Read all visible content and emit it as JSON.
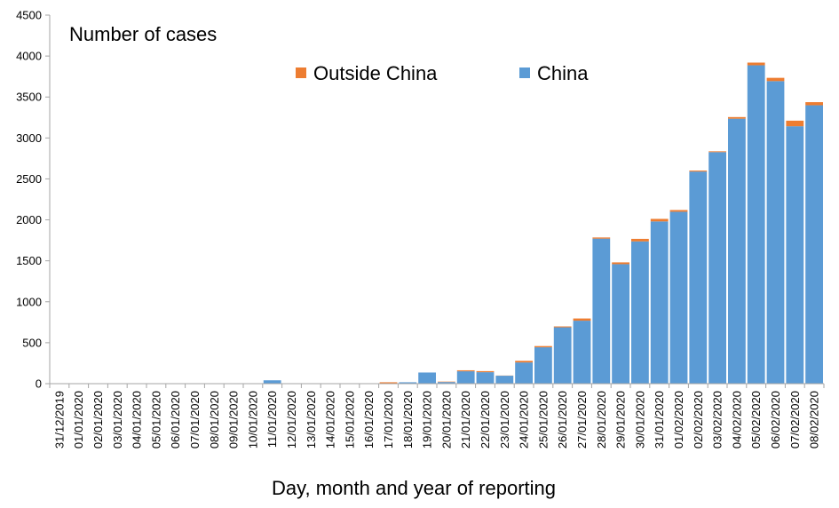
{
  "chart_data": {
    "type": "bar",
    "stacked": true,
    "title": "Number of cases",
    "xlabel": "Day, month and year of reporting",
    "ylabel": "",
    "ylim": [
      0,
      4500
    ],
    "yticks": [
      0,
      500,
      1000,
      1500,
      2000,
      2500,
      3000,
      3500,
      4000,
      4500
    ],
    "grid": false,
    "legend_position": "top-center",
    "categories": [
      "31/12/2019",
      "01/01/2020",
      "02/01/2020",
      "03/01/2020",
      "04/01/2020",
      "05/01/2020",
      "06/01/2020",
      "07/01/2020",
      "08/01/2020",
      "09/01/2020",
      "10/01/2020",
      "11/01/2020",
      "12/01/2020",
      "13/01/2020",
      "14/01/2020",
      "15/01/2020",
      "16/01/2020",
      "17/01/2020",
      "18/01/2020",
      "19/01/2020",
      "20/01/2020",
      "21/01/2020",
      "22/01/2020",
      "23/01/2020",
      "24/01/2020",
      "25/01/2020",
      "26/01/2020",
      "27/01/2020",
      "28/01/2020",
      "29/01/2020",
      "30/01/2020",
      "31/01/2020",
      "01/02/2020",
      "02/02/2020",
      "03/02/2020",
      "04/02/2020",
      "05/02/2020",
      "06/02/2020",
      "07/02/2020",
      "08/02/2020"
    ],
    "series": [
      {
        "name": "China",
        "color": "#5b9bd5",
        "values": [
          0,
          0,
          0,
          0,
          0,
          0,
          0,
          0,
          0,
          0,
          0,
          41,
          0,
          0,
          0,
          0,
          0,
          4,
          17,
          136,
          20,
          151,
          140,
          97,
          259,
          444,
          688,
          769,
          1771,
          1459,
          1737,
          1981,
          2099,
          2590,
          2827,
          3235,
          3887,
          3694,
          3143,
          3399
        ]
      },
      {
        "name": "Outside China",
        "color": "#ed7d31",
        "values": [
          0,
          0,
          0,
          0,
          0,
          0,
          0,
          0,
          0,
          0,
          0,
          0,
          0,
          0,
          0,
          0,
          0,
          13,
          0,
          0,
          5,
          12,
          13,
          2,
          20,
          15,
          11,
          27,
          14,
          22,
          31,
          31,
          21,
          12,
          10,
          20,
          33,
          40,
          68,
          38
        ]
      }
    ]
  }
}
